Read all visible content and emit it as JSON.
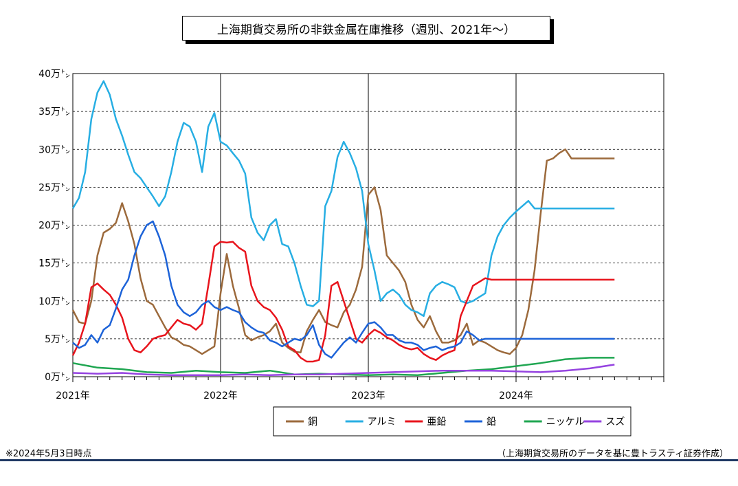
{
  "title": "上海期貨交易所の非鉄金属在庫推移（週別、2021年～）",
  "footnote_left": "※2024年5月3日時点",
  "footnote_right": "（上海期貨交易所のデータを基に豊トラスティ証券作成）",
  "chart_data": {
    "type": "line",
    "title": "上海期貨交易所の非鉄金属在庫推移（週別、2021年～）",
    "ylim": [
      0,
      400000
    ],
    "y_ticks": [
      0,
      50000,
      100000,
      150000,
      200000,
      250000,
      300000,
      350000,
      400000
    ],
    "y_tick_labels": [
      "0万㌧",
      "5万㌧",
      "10万㌧",
      "15万㌧",
      "20万㌧",
      "25万㌧",
      "30万㌧",
      "35万㌧",
      "40万㌧"
    ],
    "x_unit": "month index from 2021-01",
    "xlim": [
      0,
      48
    ],
    "x_ticks": [
      0,
      12,
      24,
      36
    ],
    "x_tick_labels": [
      "2021年",
      "2022年",
      "2023年",
      "2024年"
    ],
    "grid": "horizontal dashed, vertical solid at year boundaries",
    "legend_position": "bottom",
    "series": [
      {
        "name": "銅",
        "color": "#9c6a3c",
        "x": [
          0,
          0.5,
          1,
          1.5,
          2,
          2.5,
          3,
          3.5,
          4,
          4.5,
          5,
          5.5,
          6,
          6.5,
          7,
          7.5,
          8,
          8.5,
          9,
          9.5,
          10,
          10.5,
          11,
          11.5,
          12,
          12.5,
          13,
          13.5,
          14,
          14.5,
          15,
          15.5,
          16,
          16.5,
          17,
          17.5,
          18,
          18.5,
          19,
          19.5,
          20,
          20.5,
          21,
          21.5,
          22,
          22.5,
          23,
          23.5,
          24,
          24.5,
          25,
          25.5,
          26,
          26.5,
          27,
          27.5,
          28,
          28.5,
          29,
          29.5,
          30,
          30.5,
          31,
          31.5,
          32,
          32.5,
          33,
          33.5,
          34,
          34.5,
          35,
          35.5,
          36,
          36.5,
          37,
          37.5,
          38,
          38.5,
          39,
          39.5,
          40,
          40.5,
          41,
          41.5,
          42,
          42.5,
          43,
          43.5,
          44
        ],
        "values": [
          88000,
          72000,
          70000,
          100000,
          160000,
          190000,
          195000,
          203000,
          229000,
          205000,
          175000,
          130000,
          100000,
          95000,
          80000,
          65000,
          52000,
          48000,
          42000,
          40000,
          35000,
          30000,
          35000,
          40000,
          110000,
          162000,
          120000,
          90000,
          55000,
          48000,
          52000,
          55000,
          60000,
          70000,
          45000,
          38000,
          33000,
          32000,
          60000,
          75000,
          88000,
          72000,
          68000,
          65000,
          85000,
          95000,
          115000,
          145000,
          240000,
          250000,
          220000,
          160000,
          150000,
          140000,
          125000,
          95000,
          75000,
          65000,
          80000,
          60000,
          45000,
          45000,
          48000,
          55000,
          70000,
          42000,
          48000,
          45000,
          40000,
          35000,
          32000,
          30000,
          38000,
          55000,
          88000,
          140000,
          215000,
          285000,
          288000,
          295000,
          300000,
          288000,
          288000,
          288000,
          288000,
          288000,
          288000,
          288000,
          288000
        ]
      },
      {
        "name": "アルミ",
        "color": "#27aee3",
        "x": [
          0,
          0.5,
          1,
          1.5,
          2,
          2.5,
          3,
          3.5,
          4,
          4.5,
          5,
          5.5,
          6,
          6.5,
          7,
          7.5,
          8,
          8.5,
          9,
          9.5,
          10,
          10.5,
          11,
          11.5,
          12,
          12.5,
          13,
          13.5,
          14,
          14.5,
          15,
          15.5,
          16,
          16.5,
          17,
          17.5,
          18,
          18.5,
          19,
          19.5,
          20,
          20.5,
          21,
          21.5,
          22,
          22.5,
          23,
          23.5,
          24,
          24.5,
          25,
          25.5,
          26,
          26.5,
          27,
          27.5,
          28,
          28.5,
          29,
          29.5,
          30,
          30.5,
          31,
          31.5,
          32,
          32.5,
          33,
          33.5,
          34,
          34.5,
          35,
          35.5,
          36,
          36.5,
          37,
          37.5,
          38,
          38.5,
          39,
          39.5,
          40,
          40.5,
          41,
          41.5,
          42,
          42.5,
          43,
          43.5,
          44
        ],
        "values": [
          222000,
          236000,
          270000,
          340000,
          375000,
          390000,
          372000,
          340000,
          318000,
          293000,
          270000,
          262000,
          250000,
          238000,
          225000,
          238000,
          270000,
          310000,
          335000,
          330000,
          310000,
          270000,
          330000,
          348000,
          310000,
          305000,
          295000,
          285000,
          268000,
          210000,
          190000,
          180000,
          200000,
          208000,
          175000,
          172000,
          150000,
          120000,
          95000,
          93000,
          100000,
          225000,
          245000,
          290000,
          310000,
          295000,
          275000,
          245000,
          175000,
          140000,
          100000,
          110000,
          115000,
          108000,
          95000,
          88000,
          85000,
          80000,
          110000,
          120000,
          125000,
          122000,
          118000,
          100000,
          97000,
          100000,
          105000,
          110000,
          160000,
          185000,
          200000,
          210000,
          218000,
          225000,
          232000,
          222000,
          222000,
          222000,
          222000,
          222000,
          222000,
          222000,
          222000,
          222000,
          222000,
          222000,
          222000,
          222000,
          222000
        ],
        "note": "last ~8 x positions beyond data end are placeholders clipped by x_end"
      },
      {
        "name": "亜鉛",
        "color": "#e8141c",
        "x": [
          0,
          0.5,
          1,
          1.5,
          2,
          2.5,
          3,
          3.5,
          4,
          4.5,
          5,
          5.5,
          6,
          6.5,
          7,
          7.5,
          8,
          8.5,
          9,
          9.5,
          10,
          10.5,
          11,
          11.5,
          12,
          12.5,
          13,
          13.5,
          14,
          14.5,
          15,
          15.5,
          16,
          16.5,
          17,
          17.5,
          18,
          18.5,
          19,
          19.5,
          20,
          20.5,
          21,
          21.5,
          22,
          22.5,
          23,
          23.5,
          24,
          24.5,
          25,
          25.5,
          26,
          26.5,
          27,
          27.5,
          28,
          28.5,
          29,
          29.5,
          30,
          30.5,
          31,
          31.5,
          32,
          32.5,
          33,
          33.5,
          34,
          34.5,
          35,
          35.5,
          36,
          36.5,
          37,
          37.5,
          38,
          38.5,
          39,
          39.5,
          40,
          40.5,
          41,
          41.5,
          42,
          42.5,
          43,
          43.5,
          44
        ],
        "values": [
          28000,
          45000,
          70000,
          118000,
          123000,
          115000,
          108000,
          95000,
          78000,
          50000,
          35000,
          32000,
          40000,
          50000,
          53000,
          55000,
          65000,
          75000,
          70000,
          68000,
          62000,
          70000,
          120000,
          172000,
          178000,
          177000,
          178000,
          170000,
          165000,
          120000,
          100000,
          92000,
          88000,
          78000,
          62000,
          40000,
          35000,
          25000,
          20000,
          20000,
          22000,
          55000,
          120000,
          125000,
          100000,
          75000,
          50000,
          45000,
          55000,
          62000,
          58000,
          52000,
          48000,
          42000,
          38000,
          36000,
          38000,
          30000,
          25000,
          22000,
          28000,
          32000,
          35000,
          80000,
          100000,
          120000,
          125000,
          130000,
          128000,
          128000,
          128000,
          128000,
          128000,
          128000,
          128000,
          128000,
          128000,
          128000,
          128000,
          128000,
          128000,
          128000,
          128000,
          128000,
          128000,
          128000,
          128000,
          128000,
          128000
        ]
      },
      {
        "name": "鉛",
        "color": "#1d63d8",
        "x": [
          0,
          0.5,
          1,
          1.5,
          2,
          2.5,
          3,
          3.5,
          4,
          4.5,
          5,
          5.5,
          6,
          6.5,
          7,
          7.5,
          8,
          8.5,
          9,
          9.5,
          10,
          10.5,
          11,
          11.5,
          12,
          12.5,
          13,
          13.5,
          14,
          14.5,
          15,
          15.5,
          16,
          16.5,
          17,
          17.5,
          18,
          18.5,
          19,
          19.5,
          20,
          20.5,
          21,
          21.5,
          22,
          22.5,
          23,
          23.5,
          24,
          24.5,
          25,
          25.5,
          26,
          26.5,
          27,
          27.5,
          28,
          28.5,
          29,
          29.5,
          30,
          30.5,
          31,
          31.5,
          32,
          32.5,
          33,
          33.5,
          34,
          34.5,
          35,
          35.5,
          36,
          36.5,
          37,
          37.5,
          38,
          38.5,
          39,
          39.5,
          40,
          40.5,
          41,
          41.5,
          42,
          42.5,
          43,
          43.5,
          44
        ],
        "values": [
          45000,
          38000,
          42000,
          55000,
          45000,
          62000,
          68000,
          90000,
          115000,
          128000,
          160000,
          185000,
          200000,
          205000,
          185000,
          160000,
          120000,
          95000,
          85000,
          80000,
          85000,
          95000,
          100000,
          92000,
          88000,
          92000,
          88000,
          85000,
          72000,
          65000,
          60000,
          58000,
          48000,
          45000,
          40000,
          45000,
          50000,
          48000,
          55000,
          68000,
          42000,
          30000,
          25000,
          35000,
          45000,
          52000,
          45000,
          58000,
          70000,
          72000,
          65000,
          55000,
          55000,
          48000,
          45000,
          45000,
          42000,
          35000,
          38000,
          40000,
          35000,
          38000,
          40000,
          45000,
          60000,
          55000,
          48000,
          50000,
          50000,
          50000,
          50000,
          50000,
          50000,
          50000,
          50000,
          50000,
          50000,
          50000,
          50000,
          50000,
          50000,
          50000,
          50000,
          50000,
          50000,
          50000,
          50000,
          50000,
          50000
        ]
      },
      {
        "name": "ニッケル",
        "color": "#1fa651",
        "x": [
          0,
          2,
          4,
          6,
          8,
          10,
          12,
          14,
          16,
          18,
          20,
          22,
          24,
          26,
          28,
          30,
          32,
          34,
          36,
          38,
          40,
          42,
          44,
          46,
          48
        ],
        "values": [
          18000,
          12000,
          10000,
          6000,
          5000,
          8000,
          6000,
          5000,
          8000,
          3000,
          4000,
          3000,
          2000,
          3000,
          2000,
          5000,
          8000,
          10000,
          14000,
          18000,
          23000,
          25000,
          25000,
          25000,
          25000
        ]
      },
      {
        "name": "スズ",
        "color": "#9543e0",
        "x": [
          0,
          2,
          4,
          6,
          8,
          10,
          12,
          14,
          16,
          18,
          20,
          22,
          24,
          26,
          28,
          30,
          32,
          34,
          36,
          38,
          40,
          42,
          44,
          46,
          48
        ],
        "values": [
          5000,
          4000,
          5000,
          3000,
          2000,
          2000,
          2000,
          3000,
          2000,
          3000,
          3000,
          4000,
          5000,
          6000,
          7000,
          8000,
          8000,
          8000,
          7000,
          6000,
          8000,
          11000,
          16000,
          16000,
          16000
        ]
      }
    ]
  }
}
